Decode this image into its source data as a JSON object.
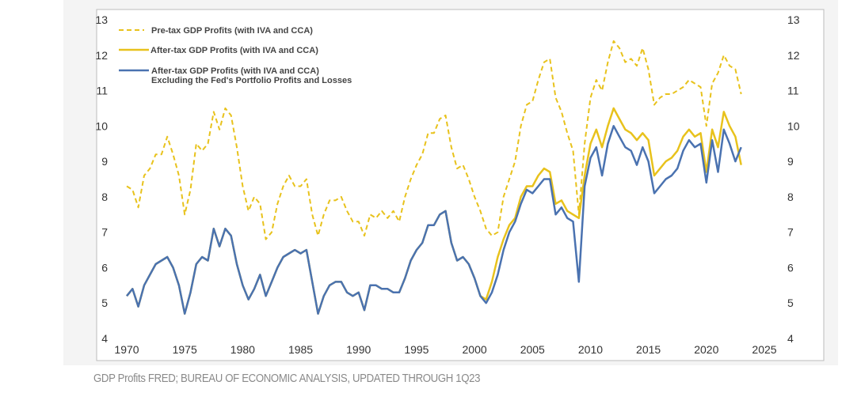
{
  "caption": "GDP Profits FRED; BUREAU OF ECONOMIC ANALYSIS, UPDATED THROUGH 1Q23",
  "chart_data": {
    "type": "line",
    "title": "",
    "xlabel": "",
    "ylabel": "",
    "xlim": [
      1970,
      2025
    ],
    "ylim": [
      4,
      13
    ],
    "x_ticks": [
      "1970",
      "1975",
      "1980",
      "1985",
      "1990",
      "1995",
      "2000",
      "2005",
      "2010",
      "2015",
      "2020",
      "2025"
    ],
    "y_ticks": [
      "4",
      "5",
      "6",
      "7",
      "8",
      "9",
      "10",
      "11",
      "12",
      "13"
    ],
    "y_axis_both_sides": true,
    "grid": false,
    "legend_position": "top-left",
    "x": [
      1970,
      1970.5,
      1971,
      1971.5,
      1972,
      1972.5,
      1973,
      1973.5,
      1974,
      1974.5,
      1975,
      1975.5,
      1976,
      1976.5,
      1977,
      1977.5,
      1978,
      1978.5,
      1979,
      1979.5,
      1980,
      1980.5,
      1981,
      1981.5,
      1982,
      1982.5,
      1983,
      1983.5,
      1984,
      1984.5,
      1985,
      1985.5,
      1986,
      1986.5,
      1987,
      1987.5,
      1988,
      1988.5,
      1989,
      1989.5,
      1990,
      1990.5,
      1991,
      1991.5,
      1992,
      1992.5,
      1993,
      1993.5,
      1994,
      1994.5,
      1995,
      1995.5,
      1996,
      1996.5,
      1997,
      1997.5,
      1998,
      1998.5,
      1999,
      1999.5,
      2000,
      2000.5,
      2001,
      2001.5,
      2002,
      2002.5,
      2003,
      2003.5,
      2004,
      2004.5,
      2005,
      2005.5,
      2006,
      2006.5,
      2007,
      2007.5,
      2008,
      2008.5,
      2009,
      2009.5,
      2010,
      2010.5,
      2011,
      2011.5,
      2012,
      2012.5,
      2013,
      2013.5,
      2014,
      2014.5,
      2015,
      2015.5,
      2016,
      2016.5,
      2017,
      2017.5,
      2018,
      2018.5,
      2019,
      2019.5,
      2020,
      2020.5,
      2021,
      2021.5,
      2022,
      2022.5,
      2023
    ],
    "series": [
      {
        "name": "Pre-tax GDP Profits (with IVA and CCA)",
        "color": "#e8c21c",
        "style": "dashed",
        "values": [
          8.3,
          8.2,
          7.7,
          8.6,
          8.8,
          9.2,
          9.2,
          9.7,
          9.2,
          8.6,
          7.5,
          8.2,
          9.5,
          9.3,
          9.5,
          10.4,
          9.9,
          10.5,
          10.3,
          9.4,
          8.3,
          7.6,
          8.0,
          7.8,
          6.8,
          7.0,
          7.8,
          8.3,
          8.6,
          8.3,
          8.3,
          8.5,
          7.5,
          6.9,
          7.5,
          7.9,
          7.9,
          8.0,
          7.6,
          7.3,
          7.3,
          6.9,
          7.5,
          7.4,
          7.6,
          7.4,
          7.6,
          7.3,
          8.0,
          8.5,
          8.9,
          9.2,
          9.8,
          9.8,
          10.2,
          10.3,
          9.4,
          8.8,
          8.9,
          8.5,
          8.0,
          7.6,
          7.1,
          6.9,
          7.0,
          8.0,
          8.5,
          9.0,
          10.0,
          10.6,
          10.7,
          11.3,
          11.8,
          11.9,
          10.8,
          10.4,
          9.8,
          9.3,
          7.5,
          9.5,
          10.8,
          11.3,
          11.0,
          11.8,
          12.4,
          12.2,
          11.8,
          11.9,
          11.7,
          12.2,
          11.6,
          10.6,
          10.8,
          10.9,
          10.9,
          11.0,
          11.1,
          11.3,
          11.2,
          11.1,
          10.0,
          11.2,
          11.5,
          12.0,
          11.7,
          11.6,
          10.9
        ]
      },
      {
        "name": "After-tax GDP Profits (with IVA and CCA)",
        "color": "#e8c21c",
        "style": "solid",
        "values": [
          5.2,
          5.4,
          4.9,
          5.5,
          5.8,
          6.1,
          6.2,
          6.3,
          6.0,
          5.5,
          4.7,
          5.3,
          6.1,
          6.3,
          6.2,
          7.1,
          6.6,
          7.1,
          6.9,
          6.1,
          5.5,
          5.1,
          5.4,
          5.8,
          5.2,
          5.6,
          6.0,
          6.3,
          6.4,
          6.5,
          6.4,
          6.5,
          5.6,
          4.7,
          5.2,
          5.5,
          5.6,
          5.6,
          5.3,
          5.2,
          5.3,
          4.8,
          5.5,
          5.5,
          5.4,
          5.4,
          5.3,
          5.3,
          5.7,
          6.2,
          6.5,
          6.7,
          7.2,
          7.2,
          7.5,
          7.6,
          6.7,
          6.2,
          6.3,
          6.1,
          5.7,
          5.2,
          5.1,
          5.6,
          6.3,
          6.8,
          7.2,
          7.4,
          8.0,
          8.3,
          8.3,
          8.6,
          8.8,
          8.7,
          7.8,
          7.9,
          7.6,
          7.5,
          7.4,
          8.6,
          9.5,
          9.9,
          9.4,
          10.0,
          10.5,
          10.2,
          9.9,
          9.8,
          9.6,
          9.8,
          9.6,
          8.6,
          8.8,
          9.0,
          9.1,
          9.3,
          9.7,
          9.9,
          9.7,
          9.8,
          8.7,
          9.9,
          9.4,
          10.4,
          10.0,
          9.7,
          8.9
        ]
      },
      {
        "name": "After-tax GDP Profits (with IVA and CCA) Excluding the Fed's Portfolio Profits and Losses",
        "color": "#4a72b0",
        "style": "solid",
        "values": [
          5.2,
          5.4,
          4.9,
          5.5,
          5.8,
          6.1,
          6.2,
          6.3,
          6.0,
          5.5,
          4.7,
          5.3,
          6.1,
          6.3,
          6.2,
          7.1,
          6.6,
          7.1,
          6.9,
          6.1,
          5.5,
          5.1,
          5.4,
          5.8,
          5.2,
          5.6,
          6.0,
          6.3,
          6.4,
          6.5,
          6.4,
          6.5,
          5.6,
          4.7,
          5.2,
          5.5,
          5.6,
          5.6,
          5.3,
          5.2,
          5.3,
          4.8,
          5.5,
          5.5,
          5.4,
          5.4,
          5.3,
          5.3,
          5.7,
          6.2,
          6.5,
          6.7,
          7.2,
          7.2,
          7.5,
          7.6,
          6.7,
          6.2,
          6.3,
          6.1,
          5.7,
          5.2,
          5.0,
          5.3,
          5.8,
          6.5,
          7.0,
          7.3,
          7.8,
          8.2,
          8.1,
          8.3,
          8.5,
          8.5,
          7.5,
          7.7,
          7.4,
          7.3,
          5.6,
          8.3,
          9.1,
          9.4,
          8.6,
          9.5,
          10.0,
          9.7,
          9.4,
          9.3,
          8.9,
          9.4,
          9.0,
          8.1,
          8.3,
          8.5,
          8.6,
          8.8,
          9.3,
          9.6,
          9.4,
          9.5,
          8.4,
          9.6,
          8.7,
          9.9,
          9.5,
          9.0,
          9.4
        ]
      }
    ],
    "legend": {
      "pre_tax": "Pre-tax GDP Profits (with IVA and CCA)",
      "after_tax": "After-tax GDP Profits (with IVA and CCA)",
      "after_tax_ex_fed_line1": "After-tax GDP Profits (with IVA and CCA)",
      "after_tax_ex_fed_line2": "Excluding the Fed's Portfolio Profits and Losses"
    }
  }
}
